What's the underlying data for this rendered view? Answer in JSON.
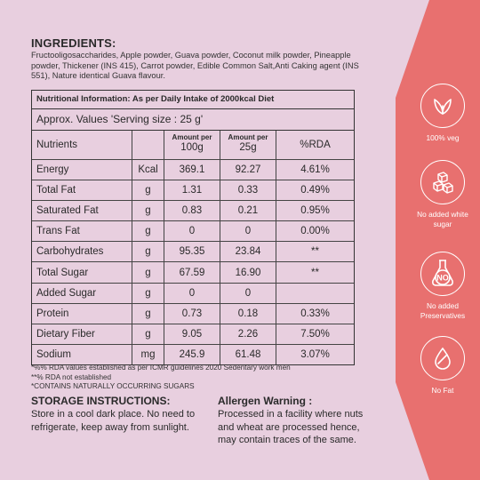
{
  "ingredients": {
    "title": "INGREDIENTS:",
    "text": "Fructooligosaccharides, Apple powder, Guava powder, Coconut milk powder, Pineapple powder, Thickener (INS 415), Carrot powder, Edible Common Salt,Anti Caking agent (INS 551), Nature identical Guava flavour."
  },
  "nutrition": {
    "heading": "Nutritional Information: As per Daily Intake of 2000kcal Diet",
    "serving": "Approx. Values 'Serving size : 25 g'",
    "columns": {
      "name": "Nutrients",
      "per100_small": "Amount per",
      "per100_big": "100g",
      "per25_small": "Amount per",
      "per25_big": "25g",
      "rda": "%RDA"
    },
    "rows": [
      {
        "name": "Energy",
        "unit": "Kcal",
        "per100": "369.1",
        "per25": "92.27",
        "rda": "4.61%"
      },
      {
        "name": "Total Fat",
        "unit": "g",
        "per100": "1.31",
        "per25": "0.33",
        "rda": "0.49%"
      },
      {
        "name": "Saturated Fat",
        "unit": "g",
        "per100": "0.83",
        "per25": "0.21",
        "rda": "0.95%"
      },
      {
        "name": "Trans Fat",
        "unit": "g",
        "per100": "0",
        "per25": "0",
        "rda": "0.00%"
      },
      {
        "name": "Carbohydrates",
        "unit": "g",
        "per100": "95.35",
        "per25": "23.84",
        "rda": "**"
      },
      {
        "name": "Total Sugar",
        "unit": "g",
        "per100": "67.59",
        "per25": "16.90",
        "rda": "**"
      },
      {
        "name": "Added Sugar",
        "unit": "g",
        "per100": "0",
        "per25": "0",
        "rda": ""
      },
      {
        "name": "Protein",
        "unit": "g",
        "per100": "0.73",
        "per25": "0.18",
        "rda": "0.33%"
      },
      {
        "name": "Dietary Fiber",
        "unit": "g",
        "per100": "9.05",
        "per25": "2.26",
        "rda": "7.50%"
      },
      {
        "name": "Sodium",
        "unit": "mg",
        "per100": "245.9",
        "per25": "61.48",
        "rda": "3.07%"
      }
    ]
  },
  "notes": [
    "*%% RDA values established as per ICMR guidelines 2020 Sedentary work men",
    "**% RDA not established",
    "*CONTAINS NATURALLY OCCURRING SUGARS"
  ],
  "storage": {
    "title": "STORAGE INSTRUCTIONS:",
    "text": "Store in a cool dark place. No need to refrigerate, keep away from sunlight."
  },
  "allergen": {
    "title": "Allergen Warning :",
    "text": "Processed in a facility where nuts and wheat are processed hence, may contain traces of the same."
  },
  "badges": [
    {
      "label": "100% veg",
      "icon": "leaf-icon"
    },
    {
      "label": "No added white sugar",
      "icon": "sugar-cubes-icon"
    },
    {
      "label": "No added Preservatives",
      "icon": "no-preservatives-icon"
    },
    {
      "label": "No Fat",
      "icon": "no-fat-drop-icon"
    }
  ],
  "colors": {
    "background": "#e8cfdf",
    "sidebar": "#e8706f",
    "text": "#2a2a2a"
  }
}
